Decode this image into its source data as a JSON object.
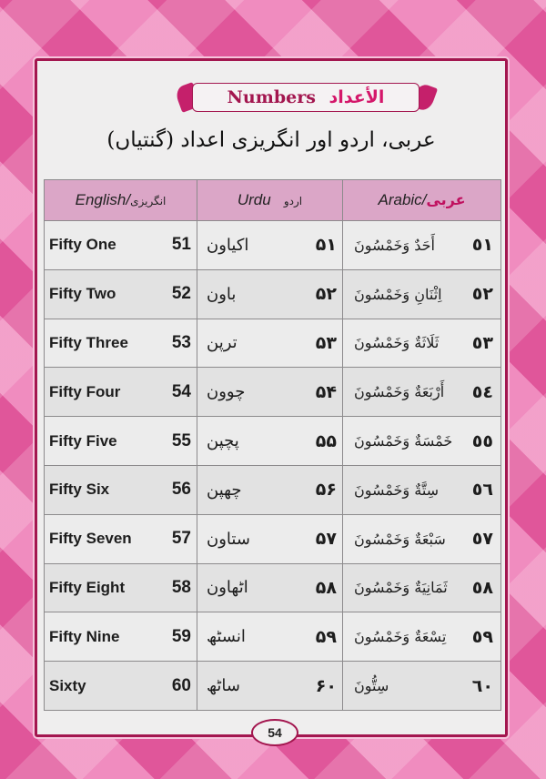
{
  "title": {
    "english": "Numbers",
    "arabic": "الأعداد"
  },
  "subtitle": "عربی، اردو اور انگریزی اعداد (گنتیاں)",
  "headers": {
    "english": {
      "latin": "English",
      "native": "انگریزی"
    },
    "urdu": {
      "latin": "Urdu",
      "native": "اردو"
    },
    "arabic": {
      "latin": "Arabic",
      "native": "عربی"
    }
  },
  "rows": [
    {
      "english": "Fifty One",
      "number": "51",
      "urdu_word": "اکیاون",
      "urdu_number": "۵۱",
      "arabic_word": "أَحَدٌ وَخَمْسُونَ",
      "arabic_number": "٥١"
    },
    {
      "english": "Fifty Two",
      "number": "52",
      "urdu_word": "باون",
      "urdu_number": "۵۲",
      "arabic_word": "اِثْنَانِ وَخَمْسُونَ",
      "arabic_number": "٥٢"
    },
    {
      "english": "Fifty Three",
      "number": "53",
      "urdu_word": "ترپن",
      "urdu_number": "۵۳",
      "arabic_word": "ثَلَاثَةٌ وَخَمْسُونَ",
      "arabic_number": "٥٣"
    },
    {
      "english": "Fifty Four",
      "number": "54",
      "urdu_word": "چوون",
      "urdu_number": "۵۴",
      "arabic_word": "أَرْبَعَةٌ وَخَمْسُونَ",
      "arabic_number": "٥٤"
    },
    {
      "english": "Fifty Five",
      "number": "55",
      "urdu_word": "پچپن",
      "urdu_number": "۵۵",
      "arabic_word": "خَمْسَةٌ وَخَمْسُونَ",
      "arabic_number": "٥٥"
    },
    {
      "english": "Fifty Six",
      "number": "56",
      "urdu_word": "چھپن",
      "urdu_number": "۵۶",
      "arabic_word": "سِتَّةٌ وَخَمْسُونَ",
      "arabic_number": "٥٦"
    },
    {
      "english": "Fifty Seven",
      "number": "57",
      "urdu_word": "ستاون",
      "urdu_number": "۵۷",
      "arabic_word": "سَبْعَةٌ وَخَمْسُونَ",
      "arabic_number": "٥٧"
    },
    {
      "english": "Fifty Eight",
      "number": "58",
      "urdu_word": "اٹھاون",
      "urdu_number": "۵۸",
      "arabic_word": "ثَمَانِيَةٌ وَخَمْسُونَ",
      "arabic_number": "٥٨"
    },
    {
      "english": "Fifty Nine",
      "number": "59",
      "urdu_word": "انسٹھ",
      "urdu_number": "۵۹",
      "arabic_word": "تِسْعَةٌ وَخَمْسُونَ",
      "arabic_number": "٥٩"
    },
    {
      "english": "Sixty",
      "number": "60",
      "urdu_word": "ساٹھ",
      "urdu_number": "۶۰",
      "arabic_word": "سِتُّونَ",
      "arabic_number": "٦٠"
    }
  ],
  "page_number": "54",
  "colors": {
    "accent": "#a3164f",
    "header_bg": "#dba6c7",
    "page_bg": "#e0569a"
  }
}
